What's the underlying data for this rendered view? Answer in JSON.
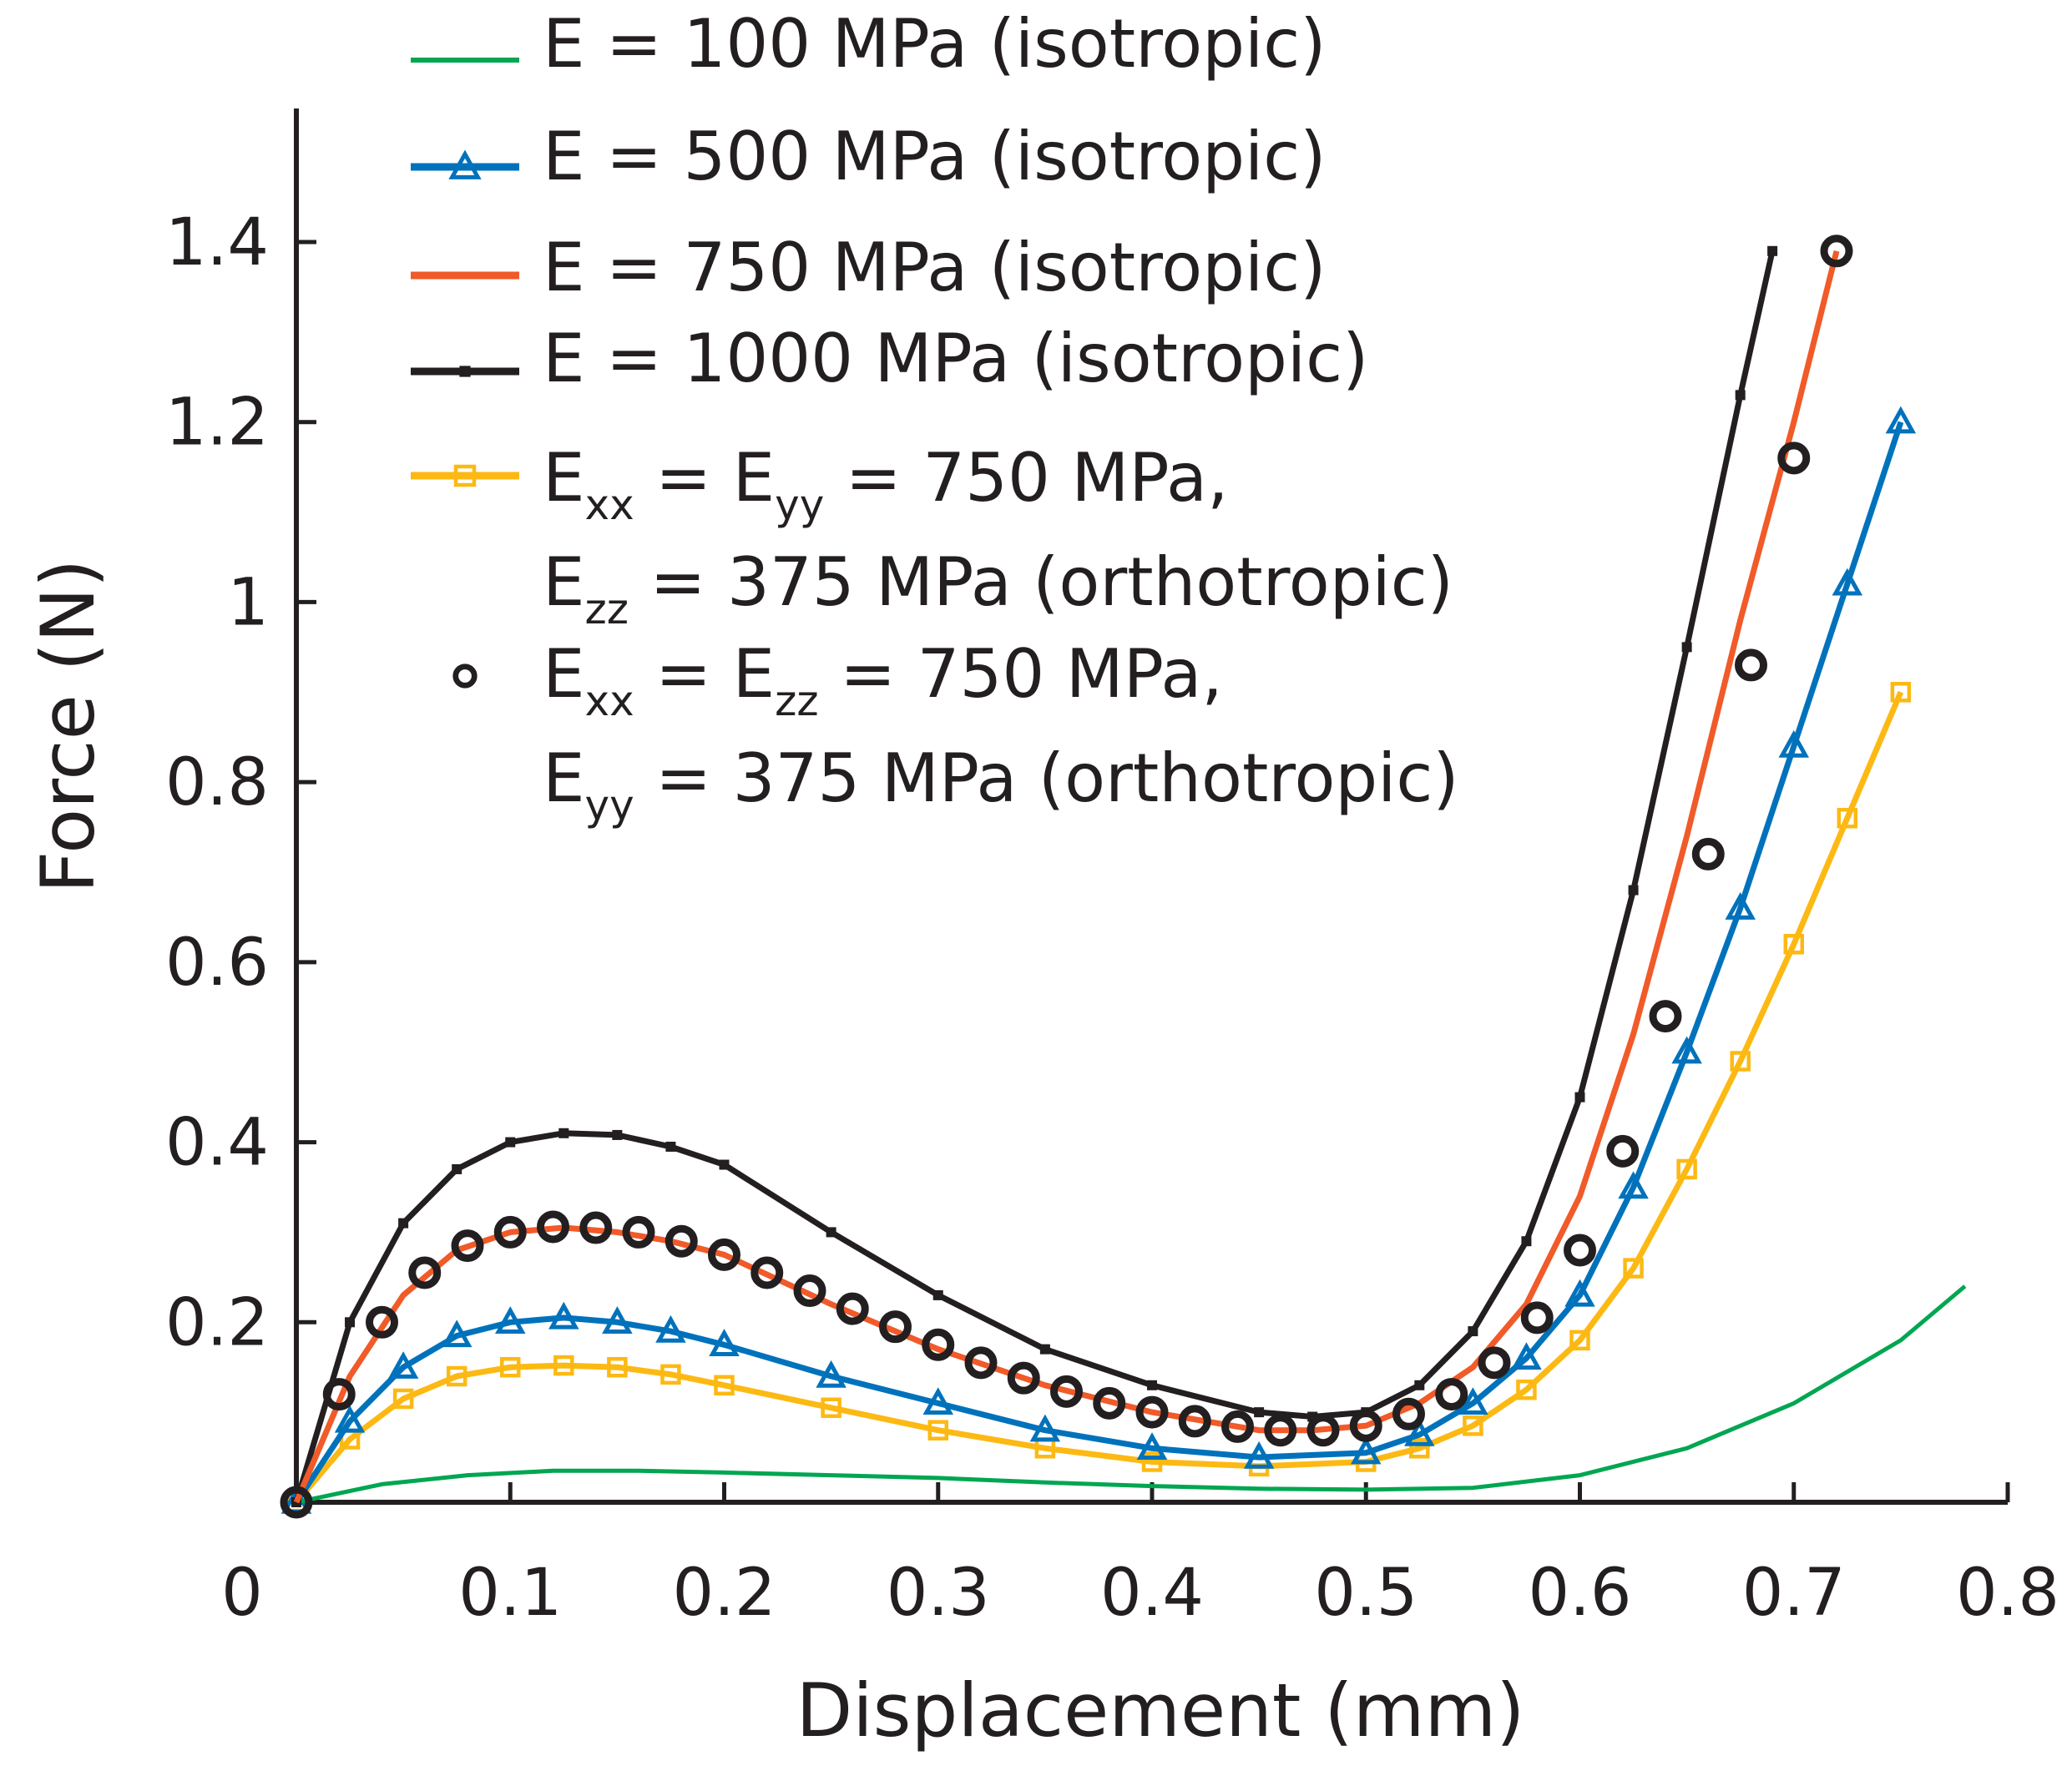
{
  "chart_data": {
    "type": "line",
    "xlabel": "Displacement (mm)",
    "ylabel": "Force (N)",
    "xlim": [
      0,
      0.8
    ],
    "ylim": [
      0,
      1.4
    ],
    "xticks": [
      "0",
      "0.1",
      "0.2",
      "0.3",
      "0.4",
      "0.5",
      "0.6",
      "0.7",
      "0.8"
    ],
    "yticks": [
      "0.2",
      "0.4",
      "0.6",
      "0.8",
      "1",
      "1.2",
      "1.4"
    ],
    "grid": false,
    "legend_position": "top-left",
    "series": [
      {
        "legend_parts": [
          {
            "t": "E = 100 MPa (isotropic)"
          }
        ],
        "color": "#00a651",
        "marker": "none",
        "x": [
          0,
          0.04,
          0.08,
          0.12,
          0.16,
          0.2,
          0.25,
          0.3,
          0.35,
          0.4,
          0.45,
          0.5,
          0.55,
          0.6,
          0.65,
          0.7,
          0.75,
          0.78
        ],
        "y": [
          0,
          0.02,
          0.03,
          0.035,
          0.035,
          0.033,
          0.03,
          0.027,
          0.022,
          0.018,
          0.015,
          0.014,
          0.016,
          0.03,
          0.06,
          0.11,
          0.18,
          0.24
        ]
      },
      {
        "legend_parts": [
          {
            "t": "E = 500 MPa (isotropic)"
          }
        ],
        "color": "#0072bc",
        "marker": "triangle",
        "x": [
          0,
          0.025,
          0.05,
          0.075,
          0.1,
          0.125,
          0.15,
          0.175,
          0.2,
          0.25,
          0.3,
          0.35,
          0.4,
          0.45,
          0.5,
          0.525,
          0.55,
          0.575,
          0.6,
          0.625,
          0.65,
          0.675,
          0.7,
          0.725,
          0.75
        ],
        "y": [
          0,
          0.09,
          0.15,
          0.185,
          0.2,
          0.205,
          0.2,
          0.19,
          0.175,
          0.14,
          0.11,
          0.08,
          0.06,
          0.05,
          0.055,
          0.075,
          0.11,
          0.16,
          0.23,
          0.35,
          0.5,
          0.66,
          0.84,
          1.02,
          1.2
        ]
      },
      {
        "legend_parts": [
          {
            "t": "E = 750 MPa (isotropic)"
          }
        ],
        "color": "#f15a29",
        "marker": "none",
        "x": [
          0,
          0.025,
          0.05,
          0.075,
          0.1,
          0.125,
          0.15,
          0.175,
          0.2,
          0.25,
          0.3,
          0.35,
          0.4,
          0.45,
          0.475,
          0.5,
          0.525,
          0.55,
          0.575,
          0.6,
          0.625,
          0.65,
          0.675,
          0.7,
          0.72
        ],
        "y": [
          0,
          0.14,
          0.23,
          0.28,
          0.3,
          0.305,
          0.3,
          0.29,
          0.275,
          0.22,
          0.17,
          0.13,
          0.1,
          0.08,
          0.08,
          0.085,
          0.11,
          0.15,
          0.22,
          0.34,
          0.52,
          0.74,
          0.98,
          1.2,
          1.39
        ]
      },
      {
        "legend_parts": [
          {
            "t": "E = 1000 MPa (isotropic)"
          }
        ],
        "color": "#231f20",
        "marker": "square-small",
        "x": [
          0,
          0.025,
          0.05,
          0.075,
          0.1,
          0.125,
          0.15,
          0.175,
          0.2,
          0.25,
          0.3,
          0.35,
          0.4,
          0.45,
          0.475,
          0.5,
          0.525,
          0.55,
          0.575,
          0.6,
          0.625,
          0.65,
          0.675,
          0.69
        ],
        "y": [
          0,
          0.2,
          0.31,
          0.37,
          0.4,
          0.41,
          0.408,
          0.395,
          0.375,
          0.3,
          0.23,
          0.17,
          0.13,
          0.1,
          0.095,
          0.1,
          0.13,
          0.19,
          0.29,
          0.45,
          0.68,
          0.95,
          1.23,
          1.39
        ]
      },
      {
        "legend_parts": [
          {
            "t": "E"
          },
          {
            "t": "xx",
            "sub": true
          },
          {
            "t": " = E"
          },
          {
            "t": "yy",
            "sub": true
          },
          {
            "t": " = 750 MPa,"
          },
          {
            "t": "E",
            "newline": true
          },
          {
            "t": "zz",
            "sub": true
          },
          {
            "t": " = 375 MPa (orthotropic)"
          }
        ],
        "color": "#fdb913",
        "marker": "square-open",
        "x": [
          0,
          0.025,
          0.05,
          0.075,
          0.1,
          0.125,
          0.15,
          0.175,
          0.2,
          0.25,
          0.3,
          0.35,
          0.4,
          0.45,
          0.5,
          0.525,
          0.55,
          0.575,
          0.6,
          0.625,
          0.65,
          0.675,
          0.7,
          0.725,
          0.75
        ],
        "y": [
          0,
          0.07,
          0.115,
          0.14,
          0.15,
          0.152,
          0.15,
          0.142,
          0.13,
          0.105,
          0.08,
          0.06,
          0.045,
          0.04,
          0.045,
          0.06,
          0.085,
          0.125,
          0.18,
          0.26,
          0.37,
          0.49,
          0.62,
          0.76,
          0.9
        ]
      },
      {
        "legend_parts": [
          {
            "t": "E"
          },
          {
            "t": "xx",
            "sub": true
          },
          {
            "t": " = E"
          },
          {
            "t": "zz",
            "sub": true
          },
          {
            "t": " = 750 MPa,"
          },
          {
            "t": "E",
            "newline": true
          },
          {
            "t": "yy",
            "sub": true
          },
          {
            "t": " = 375 MPa (orthotropic)"
          }
        ],
        "color": "#231f20",
        "marker": "circle-open",
        "line": false,
        "x": [
          0,
          0.02,
          0.04,
          0.06,
          0.08,
          0.1,
          0.12,
          0.14,
          0.16,
          0.18,
          0.2,
          0.22,
          0.24,
          0.26,
          0.28,
          0.3,
          0.32,
          0.34,
          0.36,
          0.38,
          0.4,
          0.42,
          0.44,
          0.46,
          0.48,
          0.5,
          0.52,
          0.54,
          0.56,
          0.58,
          0.6,
          0.62,
          0.64,
          0.66,
          0.68,
          0.7,
          0.72
        ],
        "y": [
          0,
          0.12,
          0.2,
          0.255,
          0.285,
          0.3,
          0.306,
          0.305,
          0.3,
          0.29,
          0.275,
          0.255,
          0.235,
          0.215,
          0.195,
          0.175,
          0.155,
          0.138,
          0.123,
          0.11,
          0.1,
          0.09,
          0.084,
          0.08,
          0.08,
          0.085,
          0.098,
          0.12,
          0.155,
          0.205,
          0.28,
          0.39,
          0.54,
          0.72,
          0.93,
          1.16,
          1.39
        ]
      }
    ]
  }
}
